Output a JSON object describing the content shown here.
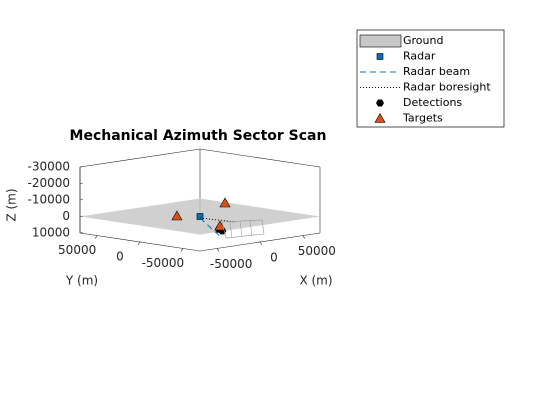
{
  "chart_data": {
    "type": "scatter3",
    "title": "Mechanical Azimuth Sector Scan",
    "xlabel": "X (m)",
    "ylabel": "Y (m)",
    "zlabel": "Z (m)",
    "xlim": [
      -70000,
      70000
    ],
    "ylim": [
      -70000,
      70000
    ],
    "zlim": [
      -30000,
      10000
    ],
    "zdir": "reverse",
    "xticks": [
      -50000,
      0,
      50000
    ],
    "yticks": [
      -50000,
      0,
      50000
    ],
    "zticks": [
      -30000,
      -20000,
      -10000,
      0,
      10000
    ],
    "legend": [
      "Ground",
      "Radar",
      "Radar beam",
      "Radar boresight",
      "Detections",
      "Targets"
    ],
    "legend_position": "northeast",
    "ground_color": "#c8c8c8",
    "series": [
      {
        "name": "Radar",
        "color": "#0072bd",
        "x": [
          0
        ],
        "y": [
          0
        ],
        "z": [
          0
        ]
      },
      {
        "name": "Detections",
        "color": "#000000",
        "x": [
          -26000,
          -24000
        ],
        "y": [
          -48000,
          -50000
        ],
        "z": [
          2000,
          3000
        ]
      },
      {
        "name": "Targets",
        "color": "#d95319",
        "x": [
          -11500,
          35000,
          -25300
        ],
        "y": [
          15400,
          5800,
          -48600
        ],
        "z": [
          0,
          -5000,
          0
        ]
      }
    ]
  }
}
